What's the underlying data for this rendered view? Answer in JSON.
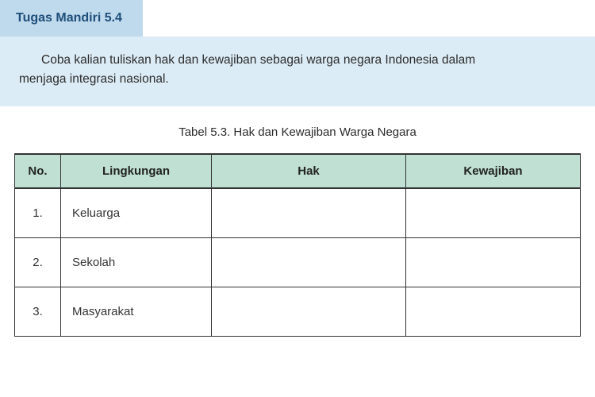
{
  "colors": {
    "header_bg": "#bfd9ed",
    "header_text": "#1e4e79",
    "instruction_bg": "#dcecf6",
    "instruction_text": "#2b2b2b",
    "caption_text": "#2b2b2b",
    "table_border": "#333333",
    "thead_bg": "#bfe0d3",
    "thead_text": "#222222",
    "cell_text": "#333333"
  },
  "task": {
    "header": "Tugas Mandiri 5.4",
    "instruction_line1": "Coba kalian tuliskan hak dan kewajiban sebagai warga negara Indonesia dalam",
    "instruction_line2": "menjaga integrasi nasional."
  },
  "table": {
    "caption": "Tabel 5.3. Hak dan Kewajiban Warga Negara",
    "columns": [
      "No.",
      "Lingkungan",
      "Hak",
      "Kewajiban"
    ],
    "rows": [
      {
        "no": "1.",
        "lingkungan": "Keluarga",
        "hak": "",
        "kewajiban": ""
      },
      {
        "no": "2.",
        "lingkungan": "Sekolah",
        "hak": "",
        "kewajiban": ""
      },
      {
        "no": "3.",
        "lingkungan": "Masyarakat",
        "hak": "",
        "kewajiban": ""
      }
    ]
  }
}
